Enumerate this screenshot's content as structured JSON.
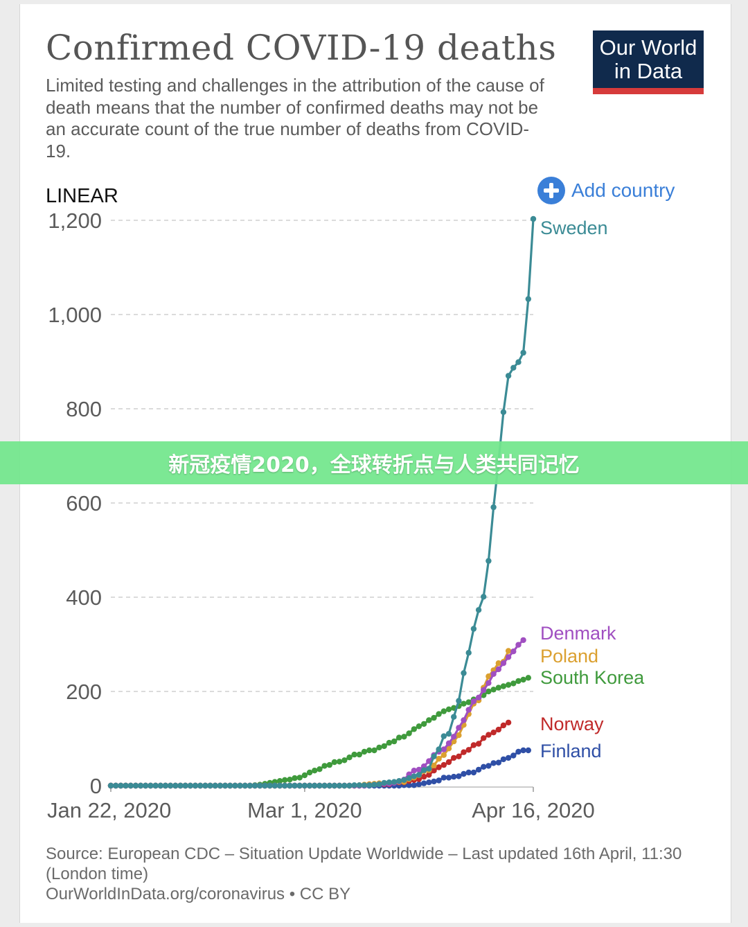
{
  "header": {
    "title": "Confirmed COVID-19 deaths",
    "subtitle": "Limited testing and challenges in the attribution of the cause of death means that the number of confirmed deaths may not be an accurate count of the true number of deaths from COVID-19.",
    "logo_line1": "Our World",
    "logo_line2": "in Data"
  },
  "controls": {
    "scale_mode": "LINEAR",
    "add_country_label": "Add country",
    "add_icon": "plus-circle-icon"
  },
  "footer": {
    "source_line1": "Source: European CDC – Situation Update Worldwide – Last updated 16th April, 11:30 (London time)",
    "source_line2": "OurWorldInData.org/coronavirus • CC BY"
  },
  "banner": {
    "text": "新冠疫情2020，全球转折点与人类共同记忆"
  },
  "colors": {
    "Sweden": "#3b8b95",
    "Denmark": "#a04fc1",
    "Poland": "#dba030",
    "South Korea": "#3f9a3c",
    "Norway": "#c02a2a",
    "Finland": "#2f4fa6",
    "grid": "#cfcfcf",
    "axis_text": "#5b5b5b"
  },
  "chart_data": {
    "type": "line",
    "x_start": "2020-01-22",
    "x_end": "2020-04-16",
    "x_ticks": [
      "Jan 22, 2020",
      "Mar 1, 2020",
      "Apr 16, 2020"
    ],
    "y_ticks": [
      "0",
      "200",
      "400",
      "600",
      "800",
      "1,000",
      "1,200"
    ],
    "ylim": [
      0,
      1200
    ],
    "grid": "horizontal dashed",
    "series": [
      {
        "name": "Sweden",
        "start_date": "2020-03-11",
        "values": [
          1,
          1,
          1,
          1,
          2,
          3,
          6,
          7,
          8,
          10,
          12,
          16,
          20,
          23,
          33,
          36,
          62,
          77,
          105,
          110,
          146,
          180,
          239,
          282,
          333,
          373,
          401,
          477,
          591,
          687,
          793,
          870,
          887,
          899,
          919,
          1033,
          1203
        ]
      },
      {
        "name": "Denmark",
        "start_date": "2020-03-14",
        "values": [
          1,
          2,
          3,
          4,
          4,
          6,
          9,
          13,
          24,
          32,
          34,
          41,
          52,
          65,
          72,
          77,
          90,
          104,
          123,
          139,
          161,
          179,
          187,
          203,
          218,
          237,
          247,
          260,
          273,
          285,
          299,
          309
        ]
      },
      {
        "name": "Poland",
        "start_date": "2020-03-12",
        "values": [
          1,
          2,
          3,
          4,
          5,
          5,
          5,
          7,
          8,
          8,
          14,
          17,
          22,
          31,
          33,
          43,
          57,
          65,
          79,
          94,
          107,
          129,
          152,
          174,
          181,
          208,
          232,
          245,
          260,
          263,
          286
        ]
      },
      {
        "name": "South Korea",
        "start_date": "2020-02-20",
        "values": [
          1,
          2,
          4,
          6,
          8,
          10,
          12,
          13,
          16,
          17,
          22,
          28,
          32,
          35,
          42,
          44,
          50,
          51,
          54,
          60,
          66,
          66,
          72,
          75,
          75,
          81,
          84,
          91,
          94,
          102,
          104,
          111,
          120,
          126,
          131,
          139,
          144,
          152,
          158,
          162,
          165,
          169,
          174,
          177,
          183,
          186,
          192,
          200,
          204,
          208,
          211,
          214,
          217,
          222,
          225,
          229
        ]
      },
      {
        "name": "Norway",
        "start_date": "2020-03-13",
        "values": [
          1,
          3,
          3,
          3,
          3,
          3,
          6,
          7,
          7,
          10,
          12,
          14,
          19,
          23,
          32,
          39,
          44,
          50,
          59,
          62,
          71,
          76,
          86,
          89,
          101,
          108,
          113,
          119,
          128,
          134
        ]
      },
      {
        "name": "Finland",
        "start_date": "2020-03-21",
        "values": [
          1,
          1,
          1,
          3,
          5,
          7,
          9,
          11,
          17,
          17,
          19,
          20,
          25,
          28,
          28,
          34,
          40,
          42,
          48,
          49,
          56,
          59,
          64,
          72,
          75,
          75
        ]
      }
    ]
  }
}
